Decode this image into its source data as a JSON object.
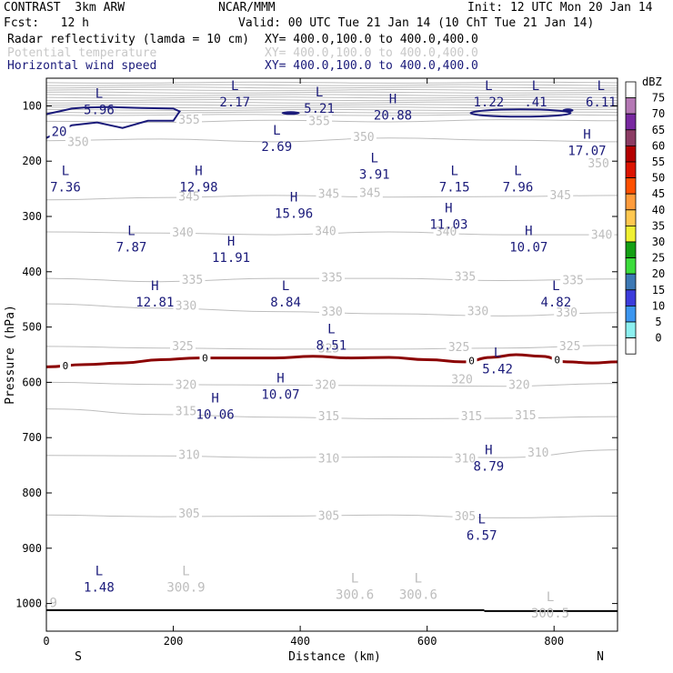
{
  "header": {
    "model": "CONTRAST  3km ARW",
    "center": "NCAR/MMM",
    "init": "Init: 12 UTC Mon 20 Jan 14",
    "fcst": "Fcst:   12 h",
    "valid": "Valid: 00 UTC Tue 21 Jan 14 (10 ChT Tue 21 Jan 14)",
    "fields": [
      {
        "name": "Radar reflectivity (lamda = 10 cm)",
        "xy": "XY= 400.0,100.0 to 400.0,400.0",
        "color": "#000000"
      },
      {
        "name": "Potential temperature",
        "xy": "XY= 400.0,100.0 to 400.0,400.0",
        "color": "#c8c8c8"
      },
      {
        "name": "Horizontal wind speed",
        "xy": "XY= 400.0,100.0 to 400.0,400.0",
        "color": "#1a1a7a"
      }
    ]
  },
  "chart_data": {
    "type": "line",
    "xlabel": "Distance (km)",
    "ylabel": "Pressure (hPa)",
    "xlim": [
      0,
      900
    ],
    "ylim": [
      1050,
      50
    ],
    "xticks": [
      0,
      200,
      400,
      600,
      800
    ],
    "yticks": [
      100,
      200,
      300,
      400,
      500,
      600,
      700,
      800,
      900,
      1000
    ],
    "x_end_labels": {
      "left": "S",
      "right": "N"
    },
    "colorbar": {
      "unit": "dBZ",
      "levels": [
        "75",
        "70",
        "65",
        "60",
        "55",
        "50",
        "45",
        "40",
        "35",
        "30",
        "25",
        "20",
        "15",
        "10",
        "5",
        "0"
      ],
      "colors": [
        "#ffffff",
        "#b478b4",
        "#7828a0",
        "#8c3c64",
        "#b40000",
        "#dc1400",
        "#ff5000",
        "#ff9c3c",
        "#ffc850",
        "#f0f032",
        "#14a014",
        "#3cdc3c",
        "#3c78b4",
        "#3c3cdc",
        "#3c96f0",
        "#8cf0f0",
        "#ffffff"
      ]
    },
    "theta_contours": [
      {
        "label": "355",
        "p": [
          128,
          130,
          126,
          129,
          125,
          127
        ]
      },
      {
        "label": "350",
        "p": [
          163,
          160,
          165,
          158,
          162,
          165
        ]
      },
      {
        "label": "345",
        "p": [
          270,
          266,
          262,
          265,
          264,
          262
        ]
      },
      {
        "label": "340",
        "p": [
          328,
          330,
          333,
          328,
          333,
          333
        ]
      },
      {
        "label": "335",
        "p": [
          412,
          418,
          412,
          412,
          416,
          413
        ]
      },
      {
        "label": "330",
        "p": [
          458,
          466,
          472,
          476,
          480,
          474
        ]
      },
      {
        "label": "325",
        "p": [
          535,
          538,
          540,
          540,
          538,
          533
        ]
      },
      {
        "label": "320",
        "p": [
          600,
          604,
          605,
          606,
          607,
          602
        ]
      },
      {
        "label": "315",
        "p": [
          648,
          658,
          663,
          666,
          665,
          662
        ]
      },
      {
        "label": "310",
        "p": [
          732,
          733,
          736,
          735,
          736,
          722
        ]
      },
      {
        "label": "305",
        "p": [
          840,
          843,
          842,
          840,
          845,
          842
        ]
      }
    ],
    "theta_x": [
      0,
      180,
      360,
      540,
      720,
      900
    ],
    "theta_labels": [
      {
        "text": "355",
        "x": 225,
        "p": 126
      },
      {
        "text": "355",
        "x": 430,
        "p": 128
      },
      {
        "text": "350",
        "x": 50,
        "p": 166
      },
      {
        "text": "350",
        "x": 500,
        "p": 157
      },
      {
        "text": "350",
        "x": 870,
        "p": 205
      },
      {
        "text": "345",
        "x": 225,
        "p": 265
      },
      {
        "text": "345",
        "x": 445,
        "p": 260
      },
      {
        "text": "345",
        "x": 510,
        "p": 258
      },
      {
        "text": "345",
        "x": 810,
        "p": 262
      },
      {
        "text": "340",
        "x": 215,
        "p": 330
      },
      {
        "text": "340",
        "x": 440,
        "p": 327
      },
      {
        "text": "340",
        "x": 630,
        "p": 328
      },
      {
        "text": "340",
        "x": 875,
        "p": 334
      },
      {
        "text": "335",
        "x": 230,
        "p": 415
      },
      {
        "text": "335",
        "x": 450,
        "p": 411
      },
      {
        "text": "335",
        "x": 660,
        "p": 409
      },
      {
        "text": "335",
        "x": 830,
        "p": 416
      },
      {
        "text": "330",
        "x": 220,
        "p": 462
      },
      {
        "text": "330",
        "x": 450,
        "p": 473
      },
      {
        "text": "330",
        "x": 680,
        "p": 472
      },
      {
        "text": "330",
        "x": 820,
        "p": 474
      },
      {
        "text": "325",
        "x": 215,
        "p": 535
      },
      {
        "text": "325",
        "x": 445,
        "p": 539
      },
      {
        "text": "325",
        "x": 650,
        "p": 537
      },
      {
        "text": "325",
        "x": 825,
        "p": 535
      },
      {
        "text": "320",
        "x": 220,
        "p": 605
      },
      {
        "text": "320",
        "x": 440,
        "p": 605
      },
      {
        "text": "320",
        "x": 655,
        "p": 595
      },
      {
        "text": "320",
        "x": 745,
        "p": 605
      },
      {
        "text": "315",
        "x": 220,
        "p": 653
      },
      {
        "text": "315",
        "x": 445,
        "p": 662
      },
      {
        "text": "315",
        "x": 670,
        "p": 662
      },
      {
        "text": "315",
        "x": 755,
        "p": 660
      },
      {
        "text": "310",
        "x": 225,
        "p": 732
      },
      {
        "text": "310",
        "x": 445,
        "p": 738
      },
      {
        "text": "310",
        "x": 660,
        "p": 738
      },
      {
        "text": "310",
        "x": 775,
        "p": 728
      },
      {
        "text": "305",
        "x": 225,
        "p": 838
      },
      {
        "text": "305",
        "x": 445,
        "p": 842
      },
      {
        "text": "305",
        "x": 660,
        "p": 843
      }
    ],
    "freezing_line": {
      "label": "0",
      "x": [
        0,
        60,
        120,
        180,
        240,
        300,
        360,
        420,
        480,
        540,
        600,
        660,
        700,
        740,
        780,
        820,
        860,
        900
      ],
      "p": [
        572,
        568,
        565,
        559,
        556,
        556,
        556,
        553,
        556,
        555,
        559,
        563,
        555,
        550,
        553,
        563,
        565,
        563
      ],
      "label_x": [
        30,
        250,
        670,
        805
      ]
    },
    "wind_contour": {
      "label": "20",
      "x": [
        0,
        40,
        80,
        120,
        160,
        200,
        210,
        200,
        150,
        100,
        60,
        40,
        20,
        0
      ],
      "p": [
        158,
        135,
        130,
        140,
        127,
        127,
        110,
        105,
        104,
        102,
        103,
        105,
        110,
        115
      ]
    },
    "extrema": [
      {
        "type": "L",
        "value": "5.96",
        "x": 83,
        "p": 108,
        "color": "navy"
      },
      {
        "type": "L",
        "value": "2.17",
        "x": 297,
        "p": 94,
        "color": "navy"
      },
      {
        "type": "L",
        "value": "5.21",
        "x": 430,
        "p": 106,
        "color": "navy"
      },
      {
        "type": "H",
        "value": "20.88",
        "x": 546,
        "p": 118,
        "color": "navy"
      },
      {
        "type": "L",
        "value": "1.22",
        "x": 697,
        "p": 94,
        "color": "navy"
      },
      {
        "type": "L",
        "value": ".41",
        "x": 771,
        "p": 94,
        "color": "navy"
      },
      {
        "type": "L",
        "value": "6.11",
        "x": 874,
        "p": 94,
        "color": "navy"
      },
      {
        "type": "L",
        "value": "2.69",
        "x": 363,
        "p": 175,
        "color": "navy"
      },
      {
        "type": "H",
        "value": "17.07",
        "x": 852,
        "p": 182,
        "color": "navy"
      },
      {
        "type": "L",
        "value": "7.36",
        "x": 30,
        "p": 248,
        "color": "navy"
      },
      {
        "type": "H",
        "value": "12.98",
        "x": 240,
        "p": 248,
        "color": "navy"
      },
      {
        "type": "L",
        "value": "3.91",
        "x": 517,
        "p": 225,
        "color": "navy"
      },
      {
        "type": "L",
        "value": "7.15",
        "x": 643,
        "p": 248,
        "color": "navy"
      },
      {
        "type": "L",
        "value": "7.96",
        "x": 743,
        "p": 248,
        "color": "navy"
      },
      {
        "type": "H",
        "value": "15.96",
        "x": 390,
        "p": 296,
        "color": "navy"
      },
      {
        "type": "H",
        "value": "11.03",
        "x": 634,
        "p": 316,
        "color": "navy"
      },
      {
        "type": "L",
        "value": "7.87",
        "x": 134,
        "p": 357,
        "color": "navy"
      },
      {
        "type": "H",
        "value": "10.07",
        "x": 760,
        "p": 357,
        "color": "navy"
      },
      {
        "type": "H",
        "value": "11.91",
        "x": 291,
        "p": 376,
        "color": "navy"
      },
      {
        "type": "H",
        "value": "12.81",
        "x": 171,
        "p": 456,
        "color": "navy"
      },
      {
        "type": "L",
        "value": "8.84",
        "x": 377,
        "p": 456,
        "color": "navy"
      },
      {
        "type": "L",
        "value": "4.82",
        "x": 803,
        "p": 456,
        "color": "navy"
      },
      {
        "type": "L",
        "value": "8.51",
        "x": 449,
        "p": 534,
        "color": "navy"
      },
      {
        "type": "L",
        "value": "5.42",
        "x": 711,
        "p": 577,
        "color": "navy"
      },
      {
        "type": "H",
        "value": "10.07",
        "x": 369,
        "p": 623,
        "color": "navy"
      },
      {
        "type": "H",
        "value": "10.06",
        "x": 266,
        "p": 659,
        "color": "navy"
      },
      {
        "type": "H",
        "value": "8.79",
        "x": 697,
        "p": 753,
        "color": "navy"
      },
      {
        "type": "L",
        "value": "6.57",
        "x": 686,
        "p": 878,
        "color": "navy"
      },
      {
        "type": "L",
        "value": "1.48",
        "x": 83,
        "p": 972,
        "color": "navy"
      },
      {
        "type": "L",
        "value": "300.9",
        "x": 220,
        "p": 972,
        "color": "grey"
      },
      {
        "type": "",
        "value": ".9",
        "x": 5,
        "p": 1000,
        "color": "grey"
      },
      {
        "type": "L",
        "value": "300.6",
        "x": 486,
        "p": 985,
        "color": "grey"
      },
      {
        "type": "L",
        "value": "300.6",
        "x": 586,
        "p": 985,
        "color": "grey"
      },
      {
        "type": "L",
        "value": "300.5",
        "x": 794,
        "p": 1019,
        "color": "grey"
      }
    ],
    "surface_line_p": 1012
  }
}
